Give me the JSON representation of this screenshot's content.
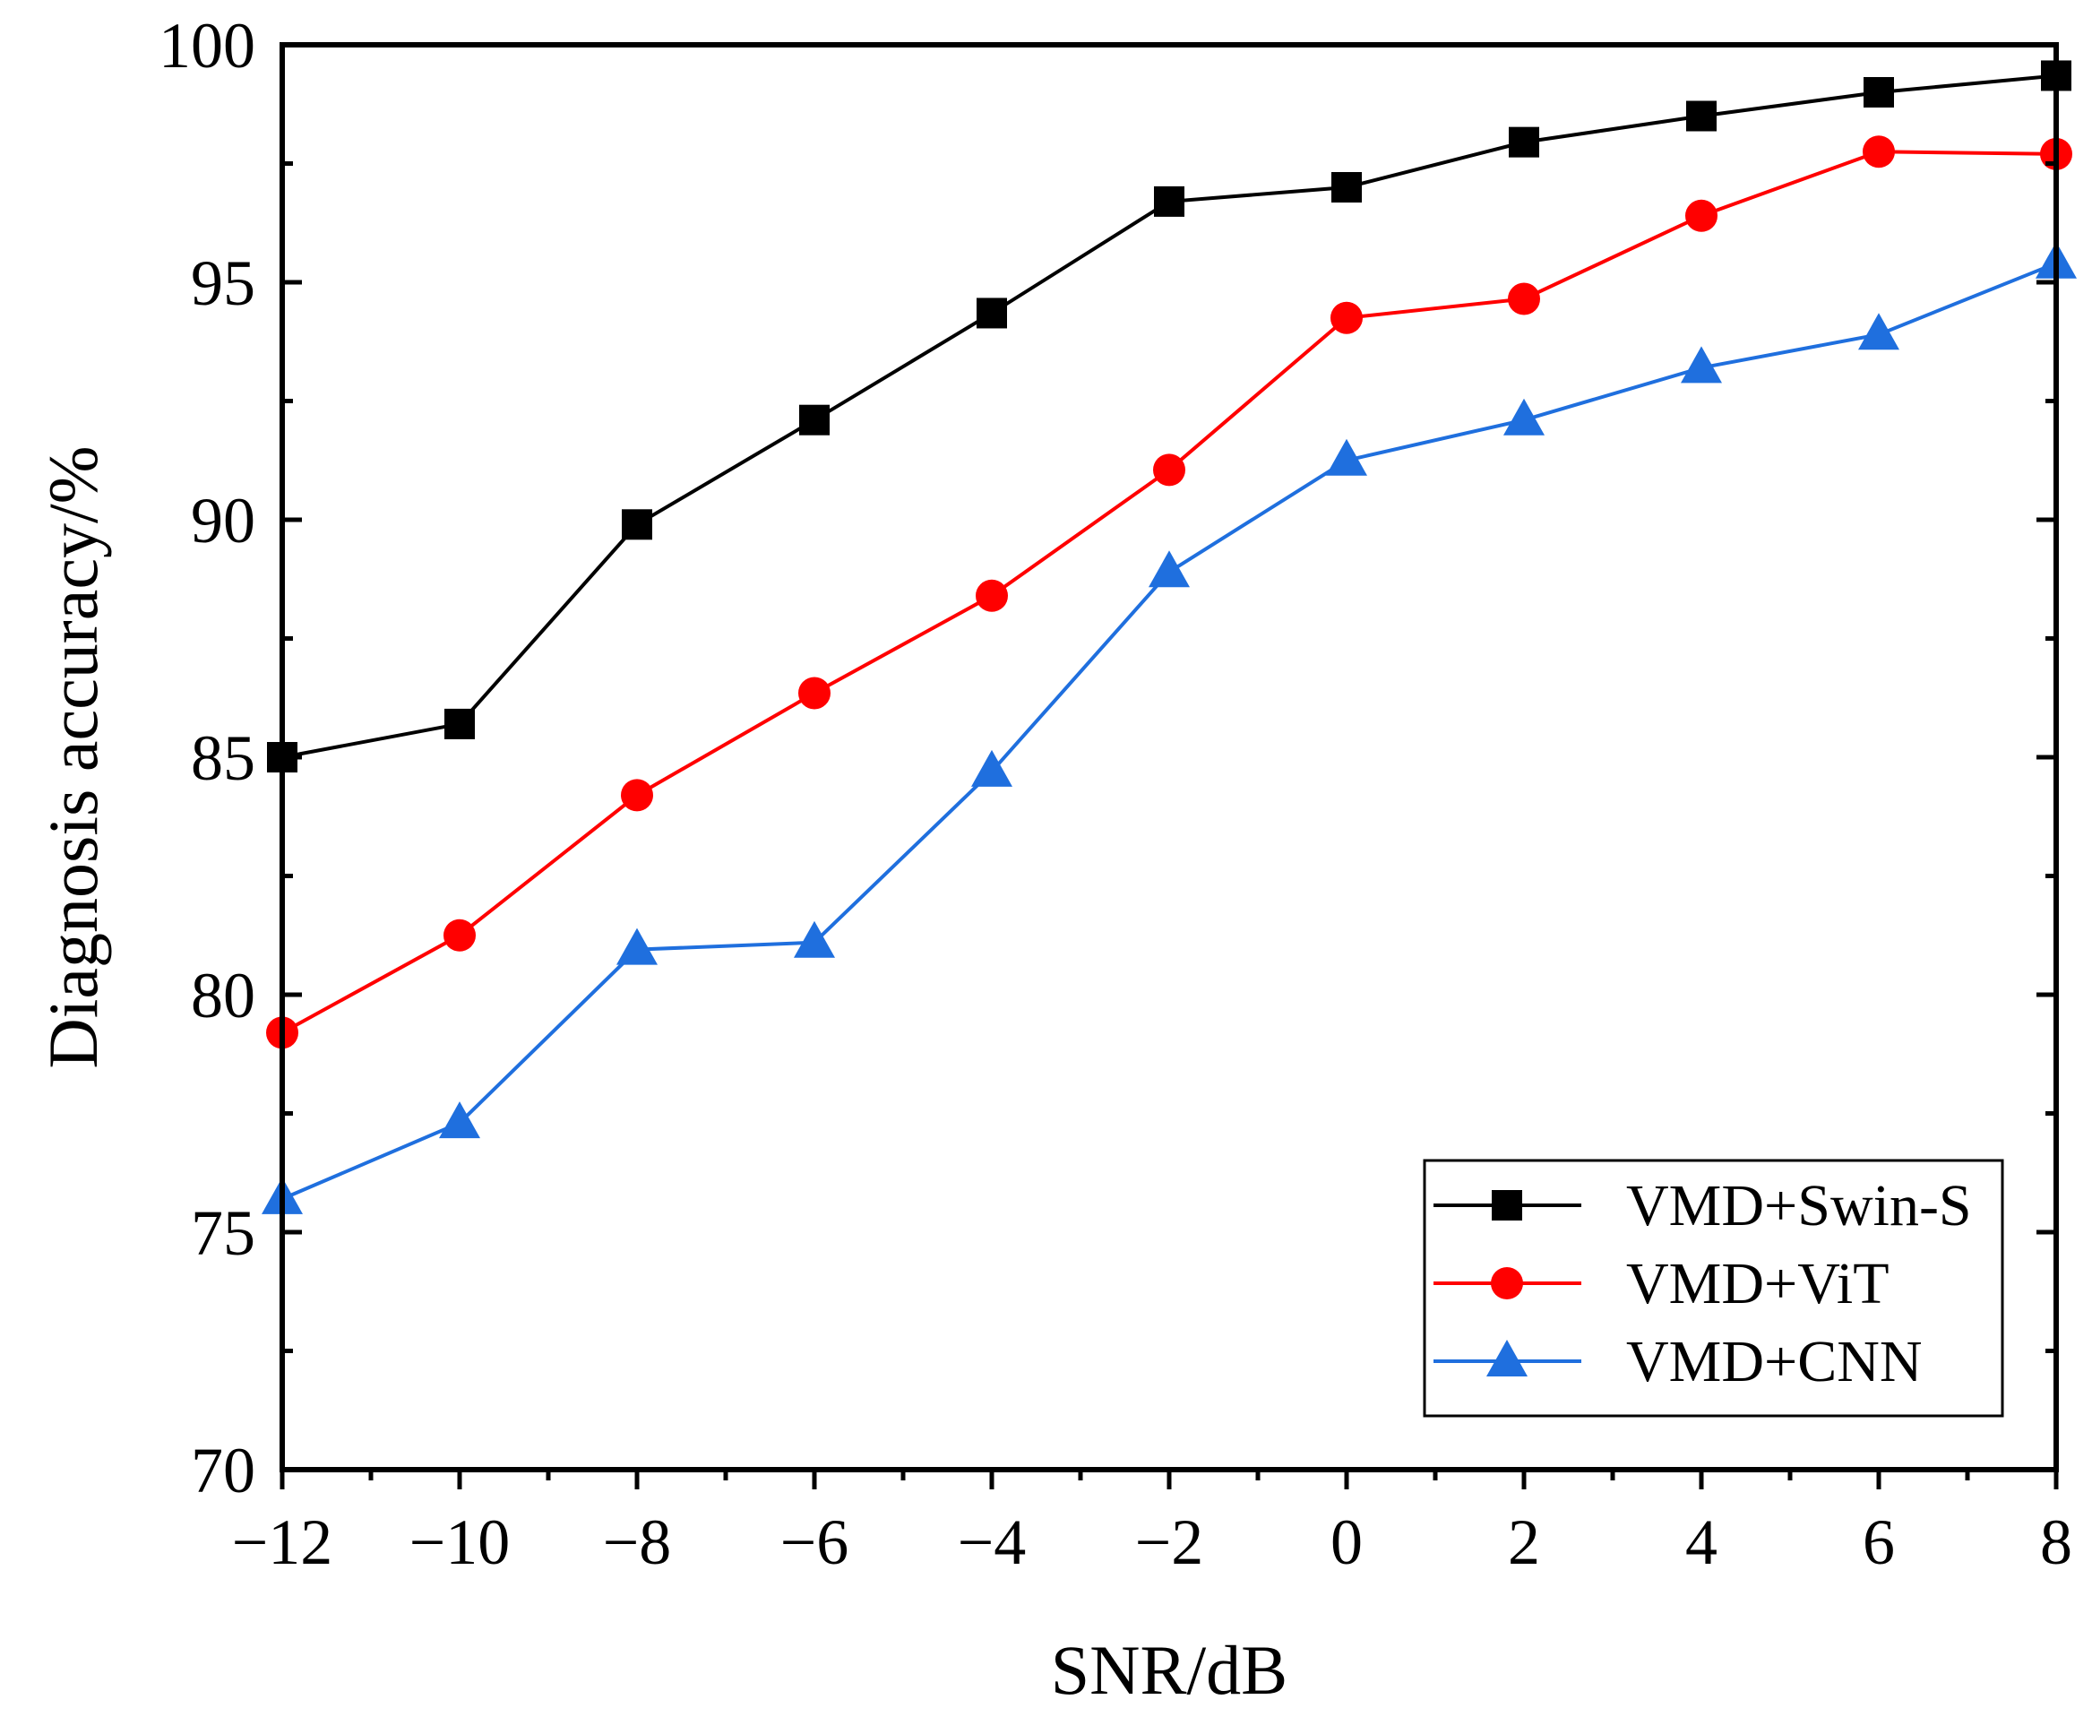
{
  "chart_data": {
    "type": "line",
    "title": "",
    "xlabel": "SNR/dB",
    "ylabel": "Diagnosis accuracy/%",
    "x": [
      -12,
      -10,
      -8,
      -6,
      -4,
      -2,
      0,
      2,
      4,
      6,
      8
    ],
    "xlim": [
      -12,
      8
    ],
    "ylim": [
      70,
      100
    ],
    "x_ticks": [
      -12,
      -10,
      -8,
      -6,
      -4,
      -2,
      0,
      2,
      4,
      6,
      8
    ],
    "x_tick_labels": [
      "−12",
      "−10",
      "−8",
      "−6",
      "−4",
      "−2",
      "0",
      "2",
      "4",
      "6",
      "8"
    ],
    "y_ticks": [
      70,
      75,
      80,
      85,
      90,
      95,
      100
    ],
    "y_tick_labels": [
      "70",
      "75",
      "80",
      "85",
      "90",
      "95",
      "100"
    ],
    "grid": false,
    "legend_position": "bottom-right",
    "series": [
      {
        "name": "VMD+Swin-S",
        "marker": "square",
        "color": "#000000",
        "values": [
          85.0,
          85.7,
          89.9,
          92.1,
          94.35,
          96.7,
          97.0,
          97.95,
          98.5,
          99.0,
          99.35
        ]
      },
      {
        "name": "VMD+ViT",
        "marker": "circle",
        "color": "#ff0000",
        "values": [
          79.2,
          81.25,
          84.2,
          86.35,
          88.4,
          91.05,
          94.25,
          94.65,
          96.4,
          97.75,
          97.7
        ]
      },
      {
        "name": "VMD+CNN",
        "marker": "triangle",
        "color": "#1f6fde",
        "values": [
          75.7,
          77.3,
          80.95,
          81.1,
          84.7,
          88.9,
          91.25,
          92.1,
          93.2,
          93.9,
          95.4
        ]
      }
    ]
  }
}
